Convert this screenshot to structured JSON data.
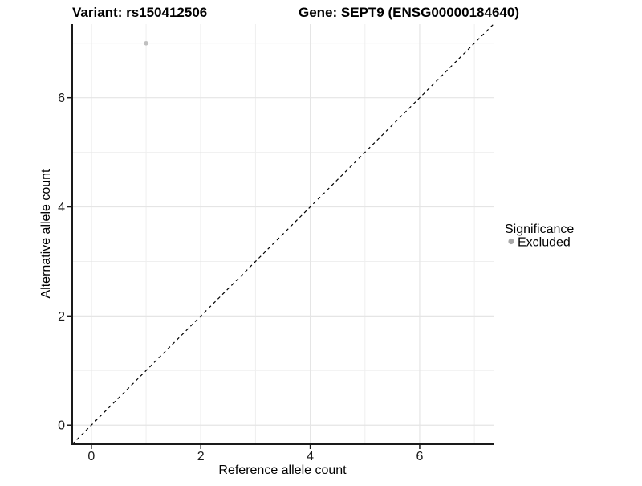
{
  "titles": {
    "variant": "Variant: rs150412506",
    "gene": "Gene: SEPT9 (ENSG00000184640)"
  },
  "axes": {
    "x_label": "Reference allele count",
    "y_label": "Alternative allele count"
  },
  "legend": {
    "title": "Significance",
    "items": [
      {
        "label": "Excluded",
        "color": "#A8A8A8"
      }
    ]
  },
  "colors": {
    "background": "#FFFFFF",
    "grid_major": "#E5E5E5",
    "grid_minor": "#EFEFEF",
    "axis_line": "#1A1A1A",
    "tick_text": "#1A1A1A",
    "reference_line": "#000000",
    "point": "#C0C0C0"
  },
  "chart_data": {
    "type": "scatter",
    "title": "Variant: rs150412506 | Gene: SEPT9 (ENSG00000184640)",
    "xlabel": "Reference allele count",
    "ylabel": "Alternative allele count",
    "xlim": [
      -0.35,
      7.35
    ],
    "ylim": [
      -0.35,
      7.35
    ],
    "x_ticks": [
      0,
      2,
      4,
      6
    ],
    "y_ticks": [
      0,
      2,
      4,
      6
    ],
    "minor_gridlines": [
      1,
      3,
      5,
      7
    ],
    "grid": true,
    "aspect": "equal",
    "legend_position": "right",
    "series": [
      {
        "name": "Excluded",
        "color": "#C0C0C0",
        "points": [
          {
            "x": 1,
            "y": 7
          }
        ]
      }
    ],
    "reference_line": {
      "label": "identity",
      "slope": 1,
      "intercept": 0,
      "style": "dashed"
    }
  }
}
